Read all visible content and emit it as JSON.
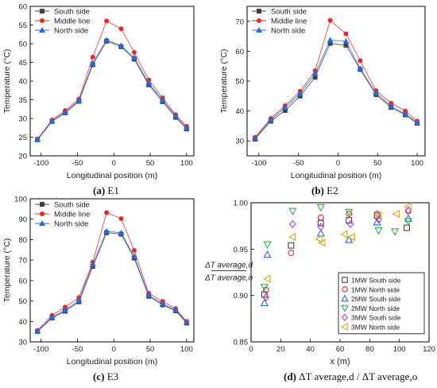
{
  "panels": [
    {
      "id": "a",
      "caption_tag": "(a)",
      "caption_text": "E1",
      "chart_data": {
        "type": "line",
        "xlabel": "Longitudinal position (m)",
        "ylabel": "Temperature (°C)",
        "xlim": [
          -115,
          110
        ],
        "ylim": [
          20,
          60
        ],
        "xticks": [
          -100,
          -50,
          0,
          50,
          100
        ],
        "yticks": [
          20,
          25,
          30,
          35,
          40,
          45,
          50,
          55,
          60
        ],
        "x": [
          -105,
          -85,
          -67,
          -48,
          -29,
          -10,
          10,
          28,
          48,
          67,
          85,
          100
        ],
        "legend_position": "top-left",
        "series": [
          {
            "name": "South side",
            "color": "#404040",
            "marker": "square",
            "values": [
              24.3,
              29.2,
              31.5,
              34.6,
              44.4,
              50.7,
              49.2,
              45.9,
              39.0,
              34.5,
              30.3,
              27.2
            ]
          },
          {
            "name": "Middle line",
            "color": "#e32b2b",
            "marker": "circle",
            "values": [
              24.5,
              29.6,
              32.1,
              35.2,
              46.4,
              56.1,
              54.0,
              47.7,
              40.3,
              35.5,
              31.0,
              27.9
            ]
          },
          {
            "name": "North side",
            "color": "#2a6ad6",
            "marker": "triangle",
            "values": [
              24.4,
              29.3,
              31.7,
              34.8,
              44.8,
              51.0,
              49.5,
              46.3,
              39.4,
              34.9,
              30.6,
              27.5
            ]
          }
        ]
      }
    },
    {
      "id": "b",
      "caption_tag": "(b)",
      "caption_text": "E2",
      "chart_data": {
        "type": "line",
        "xlabel": "Longitudinal position (m)",
        "ylabel": "Temperature (°C)",
        "xlim": [
          -115,
          110
        ],
        "ylim": [
          25,
          75
        ],
        "xticks": [
          -100,
          -50,
          0,
          50,
          100
        ],
        "yticks": [
          30,
          40,
          50,
          60,
          70
        ],
        "x": [
          -105,
          -85,
          -67,
          -48,
          -29,
          -10,
          10,
          28,
          48,
          67,
          85,
          100
        ],
        "legend_position": "top-left",
        "series": [
          {
            "name": "South side",
            "color": "#404040",
            "marker": "square",
            "values": [
              30.6,
              36.6,
              40.2,
              45.0,
              51.3,
              62.6,
              62.0,
              53.9,
              45.5,
              41.2,
              38.7,
              35.9
            ]
          },
          {
            "name": "Middle line",
            "color": "#e32b2b",
            "marker": "circle",
            "values": [
              31.2,
              37.5,
              41.8,
              46.6,
              53.5,
              70.3,
              65.8,
              56.8,
              46.8,
              42.6,
              40.0,
              36.6
            ]
          },
          {
            "name": "North side",
            "color": "#2a6ad6",
            "marker": "triangle",
            "values": [
              30.9,
              37.0,
              41.2,
              45.8,
              52.5,
              63.7,
              63.3,
              54.2,
              46.0,
              41.6,
              39.0,
              36.1
            ]
          }
        ]
      }
    },
    {
      "id": "c",
      "caption_tag": "(c)",
      "caption_text": "E3",
      "chart_data": {
        "type": "line",
        "xlabel": "Longitudinal position (m)",
        "ylabel": "Temperature (°C)",
        "xlim": [
          -115,
          110
        ],
        "ylim": [
          30,
          100
        ],
        "xticks": [
          -100,
          -50,
          0,
          50,
          100
        ],
        "yticks": [
          30,
          40,
          50,
          60,
          70,
          80,
          90,
          100
        ],
        "x": [
          -105,
          -85,
          -67,
          -48,
          -29,
          -10,
          10,
          28,
          48,
          67,
          85,
          100
        ],
        "legend_position": "top-left",
        "series": [
          {
            "name": "South side",
            "color": "#404040",
            "marker": "square",
            "values": [
              35.1,
              41.7,
              45.0,
              49.6,
              66.9,
              83.4,
              82.7,
              71.0,
              52.3,
              48.1,
              45.2,
              39.2
            ]
          },
          {
            "name": "Middle line",
            "color": "#e32b2b",
            "marker": "circle",
            "values": [
              35.6,
              43.0,
              47.0,
              51.7,
              69.0,
              93.2,
              90.3,
              74.7,
              53.7,
              49.8,
              46.3,
              40.0
            ]
          },
          {
            "name": "North side",
            "color": "#2a6ad6",
            "marker": "triangle",
            "values": [
              35.3,
              42.1,
              45.6,
              50.2,
              67.8,
              84.1,
              83.3,
              71.8,
              52.8,
              48.6,
              45.7,
              39.6
            ]
          }
        ]
      }
    },
    {
      "id": "d",
      "caption_tag": "(d)",
      "caption_text": "ΔT average,d / ΔT average,o",
      "chart_data": {
        "type": "scatter",
        "xlabel": "x (m)",
        "ylabel": "ΔT average,d / ΔT average,o",
        "xlim": [
          0,
          120
        ],
        "ylim": [
          0.85,
          1.0
        ],
        "xticks": [
          0,
          20,
          40,
          60,
          80,
          100,
          120
        ],
        "yticks": [
          0.85,
          0.9,
          0.95,
          1.0
        ],
        "legend_position": "bottom-right",
        "series": [
          {
            "name": "1MW South side",
            "color": "#404040",
            "marker": "square",
            "x": [
              9,
              27,
              47,
              66,
              85,
              105
            ],
            "y": [
              0.901,
              0.954,
              0.978,
              0.981,
              0.986,
              0.973
            ]
          },
          {
            "name": "1MW North side",
            "color": "#e32b2b",
            "marker": "circle",
            "x": [
              10,
              27,
              47,
              66,
              85,
              106
            ],
            "y": [
              0.906,
              0.946,
              0.984,
              0.988,
              0.988,
              0.991
            ]
          },
          {
            "name": "2MW South side",
            "color": "#2a6ad6",
            "marker": "triangle",
            "x": [
              9,
              11,
              47,
              66,
              85,
              106
            ],
            "y": [
              0.892,
              0.944,
              0.967,
              0.96,
              0.979,
              0.983
            ]
          },
          {
            "name": "2MW North side",
            "color": "#2fae48",
            "marker": "triangle-down",
            "x": [
              9,
              11,
              28,
              47,
              66,
              86,
              97,
              106
            ],
            "y": [
              0.909,
              0.955,
              0.991,
              0.995,
              0.99,
              0.97,
              0.969,
              0.98
            ]
          },
          {
            "name": "3MW South side",
            "color": "#b13dd6",
            "marker": "diamond",
            "x": [
              10,
              28,
              47,
              67,
              86,
              106
            ],
            "y": [
              0.898,
              0.977,
              0.974,
              0.977,
              0.982,
              0.992
            ]
          },
          {
            "name": "3MW North side",
            "color": "#d6a516",
            "marker": "triangle-left",
            "x": [
              11,
              28,
              46,
              48,
              63,
              68,
              86,
              98,
              106
            ],
            "y": [
              0.918,
              0.963,
              0.961,
              0.957,
              0.966,
              0.963,
              0.986,
              0.988,
              0.996
            ]
          }
        ]
      }
    }
  ]
}
